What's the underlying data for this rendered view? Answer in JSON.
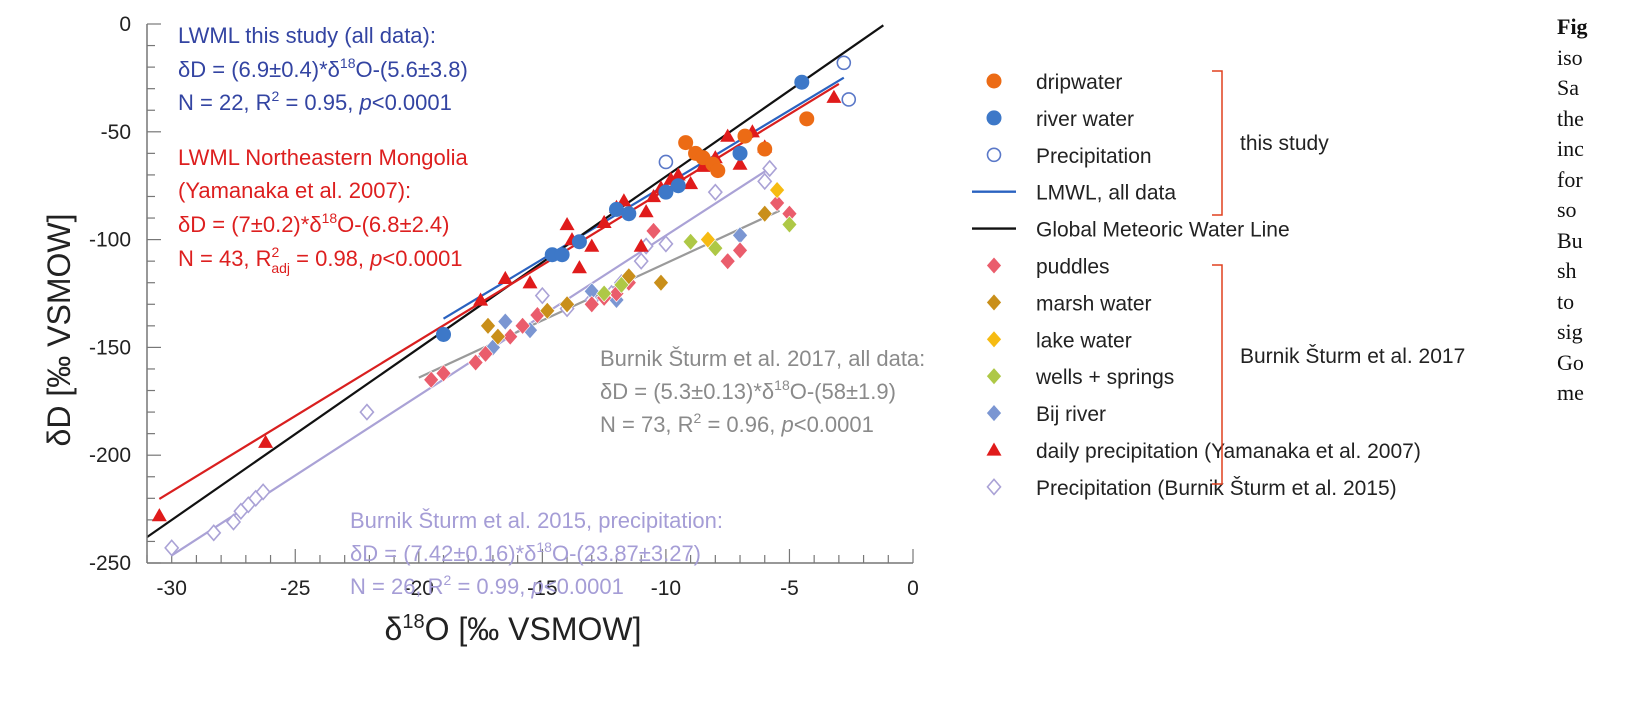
{
  "chart_data": {
    "type": "scatter",
    "xlabel": "δ18O [‰ VSMOW]",
    "ylabel": "δD [‰ VSMOW]",
    "xlim": [
      -31,
      0
    ],
    "ylim": [
      -250,
      0
    ],
    "xticks": [
      -30,
      -25,
      -20,
      -15,
      -10,
      -5,
      0
    ],
    "yticks": [
      0,
      -50,
      -100,
      -150,
      -200,
      -250
    ],
    "legend_position": "right",
    "series": [
      {
        "name": "dripwater",
        "marker": "circle",
        "color": "#ec6b15",
        "x": [
          -9.2,
          -8.8,
          -8.5,
          -8.1,
          -7.9,
          -6.8,
          -6.0,
          -4.3
        ],
        "y": [
          -55,
          -60,
          -62,
          -65,
          -68,
          -52,
          -58,
          -44
        ]
      },
      {
        "name": "river water",
        "marker": "circle",
        "color": "#3d78c8",
        "x": [
          -19,
          -14.6,
          -14.2,
          -13.5,
          -12,
          -11.5,
          -10,
          -9.5,
          -7,
          -4.5
        ],
        "y": [
          -144,
          -107,
          -107,
          -101,
          -86,
          -88,
          -78,
          -75,
          -60,
          -27
        ]
      },
      {
        "name": "Precipitation",
        "marker": "open-circle",
        "color": "#5a78c8",
        "x": [
          -10,
          -2.8,
          -2.6
        ],
        "y": [
          -64,
          -18,
          -35
        ]
      },
      {
        "name": "puddles",
        "marker": "diamond",
        "color": "#ea5d6c",
        "x": [
          -19.5,
          -19,
          -17.7,
          -17.3,
          -16.3,
          -15.8,
          -15.2,
          -13,
          -12.5,
          -12,
          -11.5,
          -10.5,
          -7.5,
          -7,
          -5.5,
          -5
        ],
        "y": [
          -165,
          -162,
          -157,
          -153,
          -145,
          -140,
          -135,
          -130,
          -127,
          -125,
          -120,
          -96,
          -110,
          -105,
          -83,
          -88
        ]
      },
      {
        "name": "marsh water",
        "marker": "diamond",
        "color": "#c98f1a",
        "x": [
          -17.2,
          -16.8,
          -14.8,
          -14,
          -11.5,
          -10.2,
          -6
        ],
        "y": [
          -140,
          -145,
          -133,
          -130,
          -117,
          -120,
          -88
        ]
      },
      {
        "name": "lake water",
        "marker": "diamond",
        "color": "#f6bb12",
        "x": [
          -8.3,
          -5.5
        ],
        "y": [
          -100,
          -77
        ]
      },
      {
        "name": "wells + springs",
        "marker": "diamond",
        "color": "#aec846",
        "x": [
          -12.5,
          -11.8,
          -9,
          -8,
          -5
        ],
        "y": [
          -125,
          -121,
          -101,
          -104,
          -93
        ]
      },
      {
        "name": "Bij river",
        "marker": "diamond",
        "color": "#7b96d2",
        "x": [
          -17,
          -16.5,
          -15.5,
          -13,
          -12,
          -7
        ],
        "y": [
          -150,
          -138,
          -142,
          -124,
          -128,
          -98
        ]
      },
      {
        "name": "daily precipitation (Yamanaka et al. 2007)",
        "marker": "triangle",
        "color": "#e01b1b",
        "x": [
          -30.5,
          -26.2,
          -17.5,
          -16.5,
          -15.5,
          -14,
          -13.8,
          -13.5,
          -13,
          -12.5,
          -12,
          -11.7,
          -11,
          -10.8,
          -10.5,
          -10.2,
          -9.8,
          -9.5,
          -9,
          -8.5,
          -8.2,
          -8,
          -7.5,
          -7,
          -6.5,
          -6,
          -3.2
        ],
        "y": [
          -228,
          -194,
          -128,
          -118,
          -120,
          -93,
          -100,
          -113,
          -103,
          -92,
          -85,
          -82,
          -103,
          -87,
          -80,
          -76,
          -72,
          -70,
          -74,
          -66,
          -65,
          -62,
          -52,
          -65,
          -50,
          -57,
          -34
        ]
      },
      {
        "name": "Precipitation (Burnik Šturm et al. 2015)",
        "marker": "open-diamond",
        "color": "#aaa2d6",
        "x": [
          -30,
          -28.3,
          -27.5,
          -27.2,
          -26.9,
          -26.6,
          -26.3,
          -22.1,
          -15,
          -14,
          -13,
          -12.2,
          -11.8,
          -11,
          -10.8,
          -10,
          -8,
          -6,
          -5.8
        ],
        "y": [
          -243,
          -236,
          -231,
          -226,
          -223,
          -220,
          -217,
          -180,
          -126,
          -132,
          -128,
          -125,
          -120,
          -110,
          -103,
          -102,
          -78,
          -73,
          -67
        ]
      }
    ],
    "lines": [
      {
        "name": "LMWL, all data",
        "color": "#2a62c0",
        "x": [
          -19,
          -2.8
        ],
        "y": [
          -136.7,
          -24.9
        ]
      },
      {
        "name": "Global Meteoric Water Line",
        "color": "#111111",
        "x": [
          -31,
          -1.2
        ],
        "y": [
          -238,
          -0.6
        ]
      },
      {
        "color": "#d91f1f",
        "x": [
          -30.5,
          -3
        ],
        "y": [
          -220.3,
          -27.8
        ]
      },
      {
        "color": "#aaa2d6",
        "x": [
          -30,
          -5.7
        ],
        "y": [
          -246.5,
          -66.2
        ]
      },
      {
        "color": "#9a9a9a",
        "x": [
          -20,
          -5.4
        ],
        "y": [
          -164,
          -86.6
        ]
      }
    ],
    "annotations": {
      "lwml_this_study": {
        "title": "LWML this study (all data):",
        "equation_a": "δD = (6.9±0.4)*δ",
        "equation_sup": "18",
        "equation_b": "O-(5.6±3.8)",
        "stats_a": "N = 22, R",
        "stats_sup": "2",
        "stats_b": " = 0.95, ",
        "stats_p": "p",
        "stats_c": "<0.0001"
      },
      "lwml_mongolia": {
        "title": "LWML Northeastern Mongolia",
        "ref": "(Yamanaka et al. 2007):",
        "equation_a": "δD = (7±0.2)*δ",
        "equation_sup": "18",
        "equation_b": "O-(6.8±2.4)",
        "stats_a": "N = 43, R",
        "stats_sup": "2",
        "stats_sub": "adj",
        "stats_b": " = 0.98, ",
        "stats_p": "p",
        "stats_c": "<0.0001"
      },
      "burnik_2017": {
        "title": "Burnik Šturm et al. 2017, all data:",
        "equation_a": "δD = (5.3±0.13)*δ",
        "equation_sup": "18",
        "equation_b": "O-(58±1.9)",
        "stats_a": "N = 73, R",
        "stats_sup": "2",
        "stats_b": " = 0.96, ",
        "stats_p": "p",
        "stats_c": "<0.0001"
      },
      "burnik_2015": {
        "title": "Burnik Šturm et al. 2015, precipitation:",
        "equation_a": "δD = (7.42±0.16)*δ",
        "equation_sup": "18",
        "equation_b": "O-(23.87±3.27)",
        "stats_a": "N = 26, R",
        "stats_sup": "2",
        "stats_b": " = 0.99, ",
        "stats_p": "p",
        "stats_c": "<0.0001"
      }
    },
    "legend_groups": [
      {
        "label": "this study"
      },
      {
        "label": "Burnik Šturm et al. 2017"
      }
    ]
  },
  "caption": {
    "lines": [
      "Fig",
      "iso",
      "Sa",
      "the",
      "inc",
      "for",
      "so",
      "Bu",
      "sh",
      "to",
      "sig",
      "Go",
      "me"
    ]
  }
}
